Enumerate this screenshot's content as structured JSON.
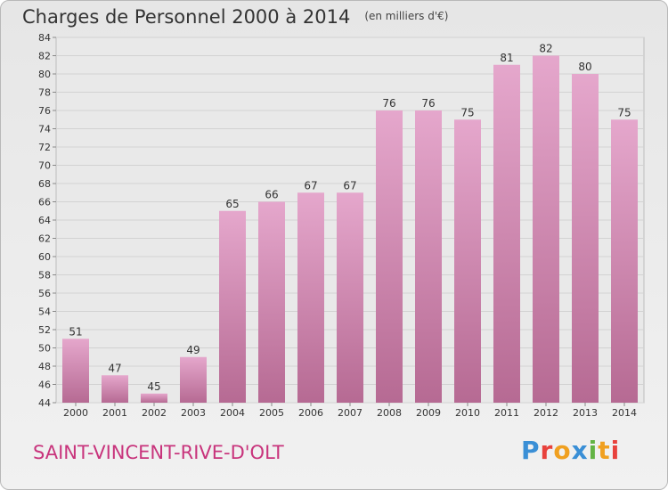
{
  "header": {
    "title": "Charges de Personnel 2000 à 2014",
    "subtitle": "(en milliers d'€)"
  },
  "footer": {
    "commune": "SAINT-VINCENT-RIVE-D'OLT",
    "logo": "Proxiti"
  },
  "colors": {
    "bar_light": "#e5a7cc",
    "bar_dark": "#b66a93",
    "commune_text": "#c8347c"
  },
  "chart_data": {
    "type": "bar",
    "title": "Charges de Personnel 2000 à 2014",
    "subtitle": "(en milliers d'€)",
    "categories": [
      "2000",
      "2001",
      "2002",
      "2003",
      "2004",
      "2005",
      "2006",
      "2007",
      "2008",
      "2009",
      "2010",
      "2011",
      "2012",
      "2013",
      "2014"
    ],
    "values": [
      51,
      47,
      45,
      49,
      65,
      66,
      67,
      67,
      76,
      76,
      75,
      81,
      82,
      80,
      75
    ],
    "ylim": [
      44,
      84
    ],
    "yticks": [
      44,
      46,
      48,
      50,
      52,
      54,
      56,
      58,
      60,
      62,
      64,
      66,
      68,
      70,
      72,
      74,
      76,
      78,
      80,
      82,
      84
    ],
    "grid": true,
    "data_labels": true
  }
}
